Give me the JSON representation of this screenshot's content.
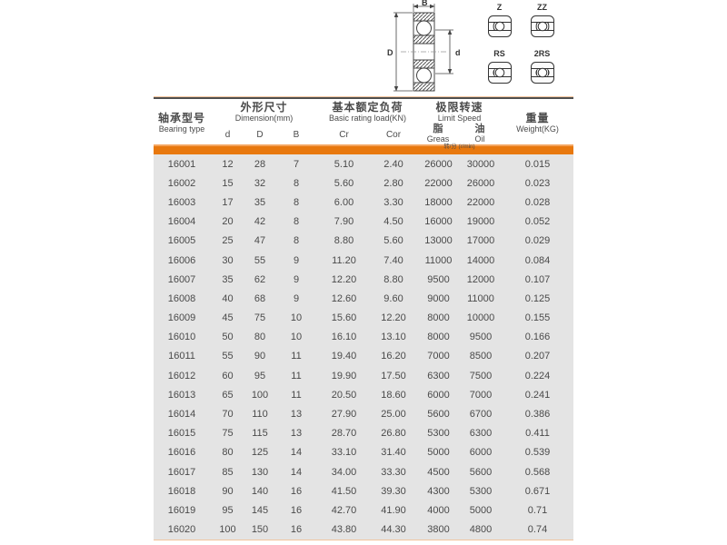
{
  "colors": {
    "accent_orange": "#e8780e",
    "accent_orange_light": "#f4a55f",
    "row_bg": "#e4e4e4",
    "text": "#4a4a4a",
    "top_line_dark": "#4f4f4f",
    "thin_line_peach": "#f2c49c"
  },
  "diagram": {
    "dim_labels": {
      "B": "B",
      "D": "D",
      "d": "d"
    },
    "variants": [
      "Z",
      "ZZ",
      "RS",
      "2RS"
    ]
  },
  "table": {
    "header": {
      "bearing_type_zh": "轴承型号",
      "bearing_type_en": "Bearing type",
      "dimension_zh": "外形尺寸",
      "dimension_en": "Dimension(mm)",
      "dim_cols": [
        "d",
        "D",
        "B"
      ],
      "rating_zh": "基本额定负荷",
      "rating_en": "Basic rating load(KN)",
      "rating_cols": [
        "Cr",
        "Cor"
      ],
      "speed_zh": "极限转速",
      "speed_en": "Limit Speed",
      "grease_zh": "脂",
      "oil_zh": "油",
      "grease_en": "Greas",
      "oil_en": "Oil",
      "speed_unit": "转/分 (r/min)",
      "weight_zh": "重量",
      "weight_en": "Weight(KG)"
    },
    "rows": [
      [
        "16001",
        "12",
        "28",
        "7",
        "5.10",
        "2.40",
        "26000",
        "30000",
        "0.015"
      ],
      [
        "16002",
        "15",
        "32",
        "8",
        "5.60",
        "2.80",
        "22000",
        "26000",
        "0.023"
      ],
      [
        "16003",
        "17",
        "35",
        "8",
        "6.00",
        "3.30",
        "18000",
        "22000",
        "0.028"
      ],
      [
        "16004",
        "20",
        "42",
        "8",
        "7.90",
        "4.50",
        "16000",
        "19000",
        "0.052"
      ],
      [
        "16005",
        "25",
        "47",
        "8",
        "8.80",
        "5.60",
        "13000",
        "17000",
        "0.029"
      ],
      [
        "16006",
        "30",
        "55",
        "9",
        "11.20",
        "7.40",
        "11000",
        "14000",
        "0.084"
      ],
      [
        "16007",
        "35",
        "62",
        "9",
        "12.20",
        "8.80",
        "9500",
        "12000",
        "0.107"
      ],
      [
        "16008",
        "40",
        "68",
        "9",
        "12.60",
        "9.60",
        "9000",
        "11000",
        "0.125"
      ],
      [
        "16009",
        "45",
        "75",
        "10",
        "15.60",
        "12.20",
        "8000",
        "10000",
        "0.155"
      ],
      [
        "16010",
        "50",
        "80",
        "10",
        "16.10",
        "13.10",
        "8000",
        "9500",
        "0.166"
      ],
      [
        "16011",
        "55",
        "90",
        "11",
        "19.40",
        "16.20",
        "7000",
        "8500",
        "0.207"
      ],
      [
        "16012",
        "60",
        "95",
        "11",
        "19.90",
        "17.50",
        "6300",
        "7500",
        "0.224"
      ],
      [
        "16013",
        "65",
        "100",
        "11",
        "20.50",
        "18.60",
        "6000",
        "7000",
        "0.241"
      ],
      [
        "16014",
        "70",
        "110",
        "13",
        "27.90",
        "25.00",
        "5600",
        "6700",
        "0.386"
      ],
      [
        "16015",
        "75",
        "115",
        "13",
        "28.70",
        "26.80",
        "5300",
        "6300",
        "0.411"
      ],
      [
        "16016",
        "80",
        "125",
        "14",
        "33.10",
        "31.40",
        "5000",
        "6000",
        "0.539"
      ],
      [
        "16017",
        "85",
        "130",
        "14",
        "34.00",
        "33.30",
        "4500",
        "5600",
        "0.568"
      ],
      [
        "16018",
        "90",
        "140",
        "16",
        "41.50",
        "39.30",
        "4300",
        "5300",
        "0.671"
      ],
      [
        "16019",
        "95",
        "145",
        "16",
        "42.70",
        "41.90",
        "4000",
        "5000",
        "0.71"
      ],
      [
        "16020",
        "100",
        "150",
        "16",
        "43.80",
        "44.30",
        "3800",
        "4800",
        "0.74"
      ]
    ]
  }
}
